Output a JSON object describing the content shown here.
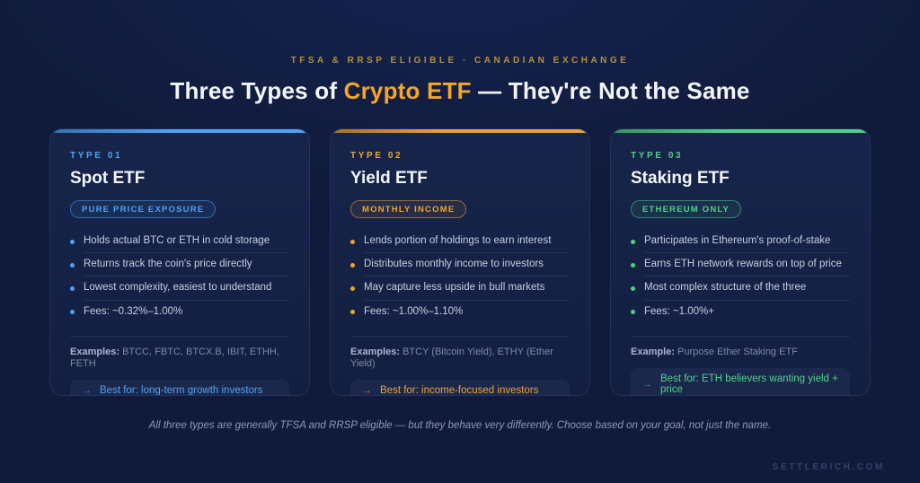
{
  "page": {
    "eyebrow": "TFSA & RRSP ELIGIBLE · CANADIAN EXCHANGE",
    "title": {
      "prefix": "Three Types of ",
      "highlight": "Crypto ETF",
      "suffix": " — They're Not the Same"
    },
    "note": "All three types are generally TFSA and RRSP eligible — but they behave very differently. Choose based on your goal, not just the name.",
    "watermark": "SETTLERICH.COM"
  },
  "colors": {
    "background": "#101b3b",
    "card_background": "#16234a",
    "heading_text": "#f3f5fa",
    "heading_highlight": "#f5a623",
    "eyebrow_gold": "#b3913f",
    "blue_accent": "#4da3f5",
    "amber_accent": "#f0a330",
    "green_accent": "#4fd18a"
  },
  "cards": [
    {
      "type_label": "TYPE 01",
      "title": "Spot ETF",
      "badge": "PURE PRICE EXPOSURE",
      "bullets": [
        "Holds actual BTC or ETH in cold storage",
        "Returns track the coin's price directly",
        "Lowest complexity, easiest to understand",
        "Fees: ~0.32%–1.00%"
      ],
      "examples_label": "Examples:",
      "examples_value": "BTCC, FBTC, BTCX.B, IBIT, ETHH, FETH",
      "best_for_arrow": "→",
      "best_for": "Best for: long-term growth investors",
      "colors": {
        "main": "#4da3f5",
        "border": "rgba(77,163,245,0.55)",
        "tint": "rgba(77,163,245,0.08)"
      }
    },
    {
      "type_label": "TYPE 02",
      "title": "Yield ETF",
      "badge": "MONTHLY INCOME",
      "bullets": [
        "Lends portion of holdings to earn interest",
        "Distributes monthly income to investors",
        "May capture less upside in bull markets",
        "Fees: ~1.00%–1.10%"
      ],
      "examples_label": "Examples:",
      "examples_value": "BTCY (Bitcoin Yield), ETHY (Ether Yield)",
      "best_for_arrow": "→",
      "best_for": "Best for: income-focused investors",
      "colors": {
        "main": "#f0a330",
        "border": "rgba(240,163,48,0.55)",
        "tint": "rgba(240,163,48,0.08)"
      }
    },
    {
      "type_label": "TYPE 03",
      "title": "Staking ETF",
      "badge": "ETHEREUM ONLY",
      "bullets": [
        "Participates in Ethereum's proof-of-stake",
        "Earns ETH network rewards on top of price",
        "Most complex structure of the three",
        "Fees: ~1.00%+"
      ],
      "examples_label": "Example:",
      "examples_value": "Purpose Ether Staking ETF",
      "best_for_arrow": "→",
      "best_for": "Best for: ETH believers wanting yield + price",
      "colors": {
        "main": "#4fd18a",
        "border": "rgba(79,209,138,0.55)",
        "tint": "rgba(79,209,138,0.08)"
      }
    }
  ]
}
